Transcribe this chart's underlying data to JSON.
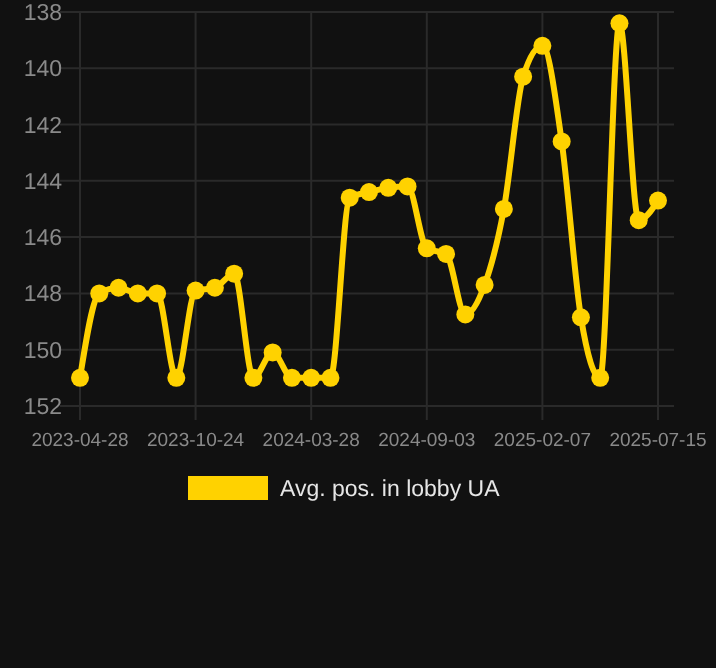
{
  "chart_data": {
    "type": "line",
    "categories": [
      "2023-04-28",
      null,
      null,
      null,
      null,
      null,
      "2023-10-24",
      null,
      null,
      null,
      null,
      null,
      "2024-03-28",
      null,
      null,
      null,
      null,
      null,
      "2024-09-03",
      null,
      null,
      null,
      null,
      null,
      "2025-02-07",
      null,
      null,
      null,
      null,
      null,
      "2025-07-15"
    ],
    "series": [
      {
        "name": "Avg. pos. in lobby UA",
        "color": "#ffd200",
        "values": [
          151,
          148,
          147.8,
          148,
          148,
          151,
          147.9,
          147.8,
          147.3,
          151,
          150.1,
          151,
          151,
          151,
          144.6,
          144.4,
          144.25,
          144.2,
          146.4,
          146.6,
          148.75,
          147.7,
          145,
          140.3,
          139.2,
          142.6,
          148.85,
          151,
          138.4,
          145.4,
          144.7
        ]
      }
    ],
    "ylim": [
      152.5,
      138
    ],
    "yticks": [
      138,
      140,
      142,
      144,
      146,
      148,
      150,
      152
    ],
    "grid": true,
    "legend": "bottom",
    "marker": "circle",
    "line_style": "solid"
  }
}
